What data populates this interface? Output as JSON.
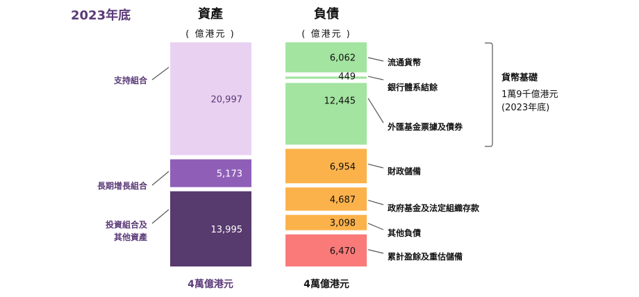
{
  "year_label": "2023年底",
  "assets_header": {
    "title": "資產",
    "unit": "( 億港元 )"
  },
  "liabilities_header": {
    "title": "負債",
    "unit": "( 億港元 )"
  },
  "assets_total": "4萬億港元",
  "liabilities_total": "4萬億港元",
  "monetary_base": {
    "title": "貨幣基礎",
    "line1": "1萬9千億港元",
    "line2": "(2023年底)"
  },
  "colors": {
    "support": "#e9d2f1",
    "long_term": "#8f5fb8",
    "investment": "#573a6e",
    "green": "#a3e4a0",
    "orange": "#fcb24b",
    "red": "#f97a79",
    "asset_label": "#5b3a78",
    "asset_total": "#5b3a78",
    "liab_total": "#111111"
  },
  "chart_data": {
    "type": "bar",
    "title": "2023年底",
    "unit": "億港元",
    "series": [
      {
        "name": "資產",
        "segments": [
          {
            "label": "支持組合",
            "value": 20997,
            "display": "20,997",
            "color": "#e9d2f1",
            "text_color": "#5b3a78"
          },
          {
            "label": "長期增長組合",
            "value": 5173,
            "display": "5,173",
            "color": "#8f5fb8",
            "text_color": "#ffffff"
          },
          {
            "label": "投資組合及其他資產",
            "label_lines": [
              "投資組合及",
              "其他資產"
            ],
            "value": 13995,
            "display": "13,995",
            "color": "#573a6e",
            "text_color": "#ffffff"
          }
        ]
      },
      {
        "name": "負債",
        "segments": [
          {
            "label": "流通貨幣",
            "value": 6062,
            "display": "6,062",
            "color": "#a3e4a0"
          },
          {
            "label": "銀行體系結餘",
            "value": 449,
            "display": "449",
            "color": "#a3e4a0"
          },
          {
            "label": "外匯基金票據及債券",
            "value": 12445,
            "display": "12,445",
            "color": "#a3e4a0"
          },
          {
            "label": "財政儲備",
            "value": 6954,
            "display": "6,954",
            "color": "#fcb24b"
          },
          {
            "label": "政府基金及法定組織存款",
            "value": 4687,
            "display": "4,687",
            "color": "#fcb24b"
          },
          {
            "label": "其他負債",
            "value": 3098,
            "display": "3,098",
            "color": "#fcb24b"
          },
          {
            "label": "累計盈餘及重估儲備",
            "value": 6470,
            "display": "6,470",
            "color": "#f97a79"
          }
        ]
      }
    ]
  }
}
